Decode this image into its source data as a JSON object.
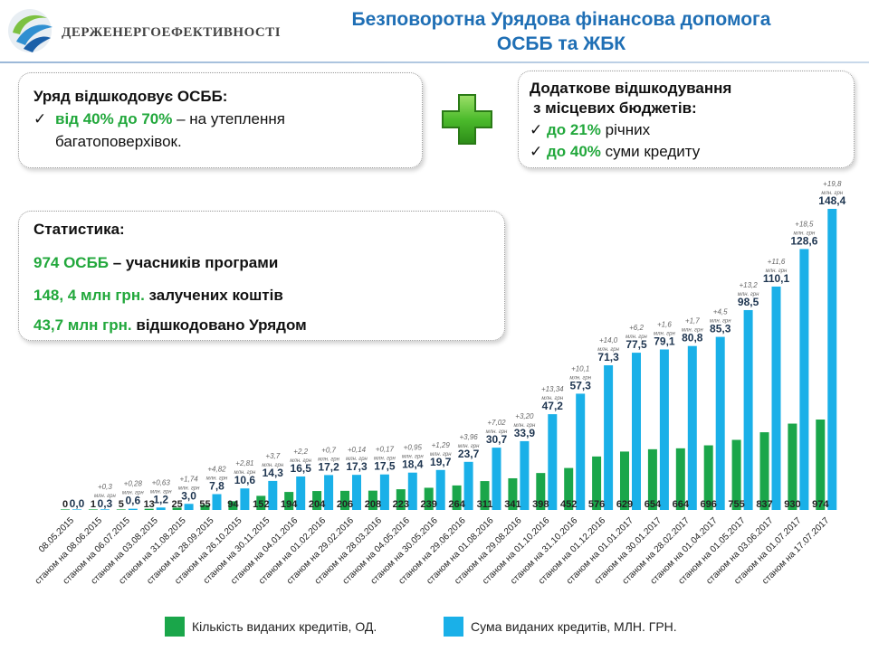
{
  "header": {
    "logo_text": "ДЕРЖЕНЕРГОЕФЕКТИВНОСТІ",
    "title_line1": "Безповоротна Урядова фінансова допомога",
    "title_line2": "ОСББ та ЖБК",
    "title_color": "#1f6fb5"
  },
  "box_government": {
    "heading": "Уряд відшкодовує ОСББ:",
    "highlight": "від 40% до 70%",
    "text_rest": " – на утеплення",
    "text_line2": "багатоповерхівок."
  },
  "box_local": {
    "heading_line1": "Додаткове відшкодування",
    "heading_line2": "з місцевих бюджетів:",
    "item1_highlight": "до 21%",
    "item1_rest": " річних",
    "item2_highlight": "до 40%",
    "item2_rest": " суми кредиту"
  },
  "box_stats": {
    "heading": "Статистика:",
    "line1_highlight": "974 ОСББ",
    "line1_rest": " – учасників програми",
    "line2_highlight": "148, 4 млн грн.",
    "line2_rest": " залучених коштів",
    "line3_highlight": "43,7 млн грн.",
    "line3_rest": " відшкодовано Урядом"
  },
  "colors": {
    "accent_green": "#22a83c",
    "bar_green": "#1aa64a",
    "bar_blue": "#1ab0e8"
  },
  "icons": {
    "plus": "green-plus-icon",
    "check": "checkmark-icon",
    "logo": "energy-logo-icon"
  },
  "chart_data": {
    "type": "bar",
    "categories": [
      "08.05.2015",
      "станом на 08.06.2015",
      "станом на 06.07.2015",
      "станом на 03.08.2015",
      "станом на 31.08.2015",
      "станом на 28.09.2015",
      "станом на 26.10.2015",
      "станом на 30.11.2015",
      "станом на 04.01.2016",
      "станом на 01.02.2016",
      "станом на 29.02.2016",
      "станом на 28.03.2016",
      "станом на 04.05.2016",
      "станом на 30.05.2016",
      "станом на 29.06.2016",
      "станом на 01.08.2016",
      "станом на 29.08.2016",
      "станом на 01.10.2016",
      "станом на 31.10.2016",
      "станом на 01.12.2016",
      "станом на 01.01.2017",
      "станом на 30.01.2017",
      "станом на 28.02.2017",
      "станом на 01.04.2017",
      "станом на 01.05.2017",
      "станом на 03.06.2017",
      "станом на 01.07.2017",
      "станом на 17.07.2017"
    ],
    "series": [
      {
        "name": "Кількість виданих кредитів, ОД.",
        "values": [
          0,
          1,
          5,
          13,
          25,
          55,
          94,
          152,
          194,
          204,
          206,
          208,
          223,
          239,
          264,
          311,
          341,
          398,
          452,
          576,
          629,
          654,
          664,
          696,
          755,
          837,
          930,
          974
        ],
        "labels": [
          "0",
          "1",
          "5",
          "13",
          "25",
          "55",
          "94",
          "152",
          "194",
          "204",
          "206",
          "208",
          "223",
          "239",
          "264",
          "311",
          "341",
          "398",
          "452",
          "576",
          "629",
          "654",
          "664",
          "696",
          "755",
          "837",
          "930",
          "974"
        ]
      },
      {
        "name": "Сума виданих кредитів, МЛН. ГРН.",
        "values": [
          0.0,
          0.3,
          0.6,
          1.2,
          3.0,
          7.8,
          10.6,
          14.3,
          16.5,
          17.2,
          17.3,
          17.5,
          18.4,
          19.7,
          23.7,
          30.7,
          33.9,
          47.2,
          57.3,
          71.3,
          77.5,
          79.1,
          80.8,
          85.3,
          98.5,
          110.1,
          128.6,
          148.4
        ],
        "labels": [
          "0,0",
          "0,3",
          "0,6",
          "1,2",
          "3,0",
          "7,8",
          "10,6",
          "14,3",
          "16,5",
          "17,2",
          "17,3",
          "17,5",
          "18,4",
          "19,7",
          "23,7",
          "30,7",
          "33,9",
          "47,2",
          "57,3",
          "71,3",
          "77,5",
          "79,1",
          "80,8",
          "85,3",
          "98,5",
          "110,1",
          "128,6",
          "148,4"
        ]
      }
    ],
    "increments": [
      "",
      "+0,3",
      "+0,28",
      "+0,63",
      "+1,74",
      "+4,82",
      "+2,81",
      "+3,7",
      "+2,2",
      "+0,7",
      "+0,14",
      "+0,17",
      "+0,95",
      "+1,29",
      "+3,96",
      "+7,02",
      "+3,20",
      "+13,34",
      "+10,1",
      "+14,0",
      "+6,2",
      "+1,6",
      "+1,7",
      "+4,5",
      "+13,2",
      "+11,6",
      "+18,5",
      "+19,8"
    ],
    "increment_unit": "млн. грн",
    "legend": [
      {
        "label": "Кількість виданих кредитів, ОД.",
        "color": "#1aa64a"
      },
      {
        "label": "Сума виданих кредитів, МЛН. ГРН.",
        "color": "#1ab0e8"
      }
    ],
    "legend_position": "bottom",
    "grid": false
  }
}
